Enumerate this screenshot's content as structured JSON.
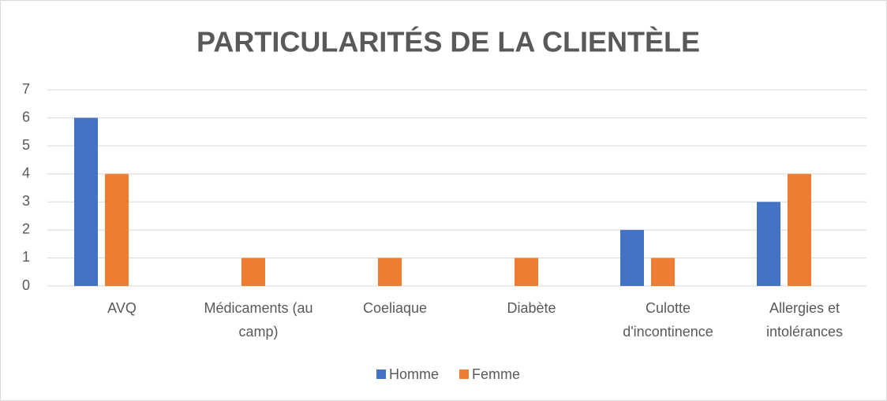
{
  "chart_data": {
    "type": "bar",
    "title": "PARTICULARITÉS DE LA CLIENTÈLE",
    "categories": [
      "AVQ",
      "Médicaments (au camp)",
      "Coeliaque",
      "Diabète",
      "Culotte d'incontinence",
      "Allergies et intolérances"
    ],
    "series": [
      {
        "name": "Homme",
        "color": "#4472c4",
        "values": [
          6,
          null,
          null,
          null,
          2,
          3
        ]
      },
      {
        "name": "Femme",
        "color": "#ed7d31",
        "values": [
          4,
          1,
          1,
          1,
          1,
          4
        ]
      }
    ],
    "ylim": [
      0,
      7
    ],
    "yticks": [
      0,
      1,
      2,
      3,
      4,
      5,
      6,
      7
    ],
    "grid": true,
    "legend": "bottom"
  }
}
